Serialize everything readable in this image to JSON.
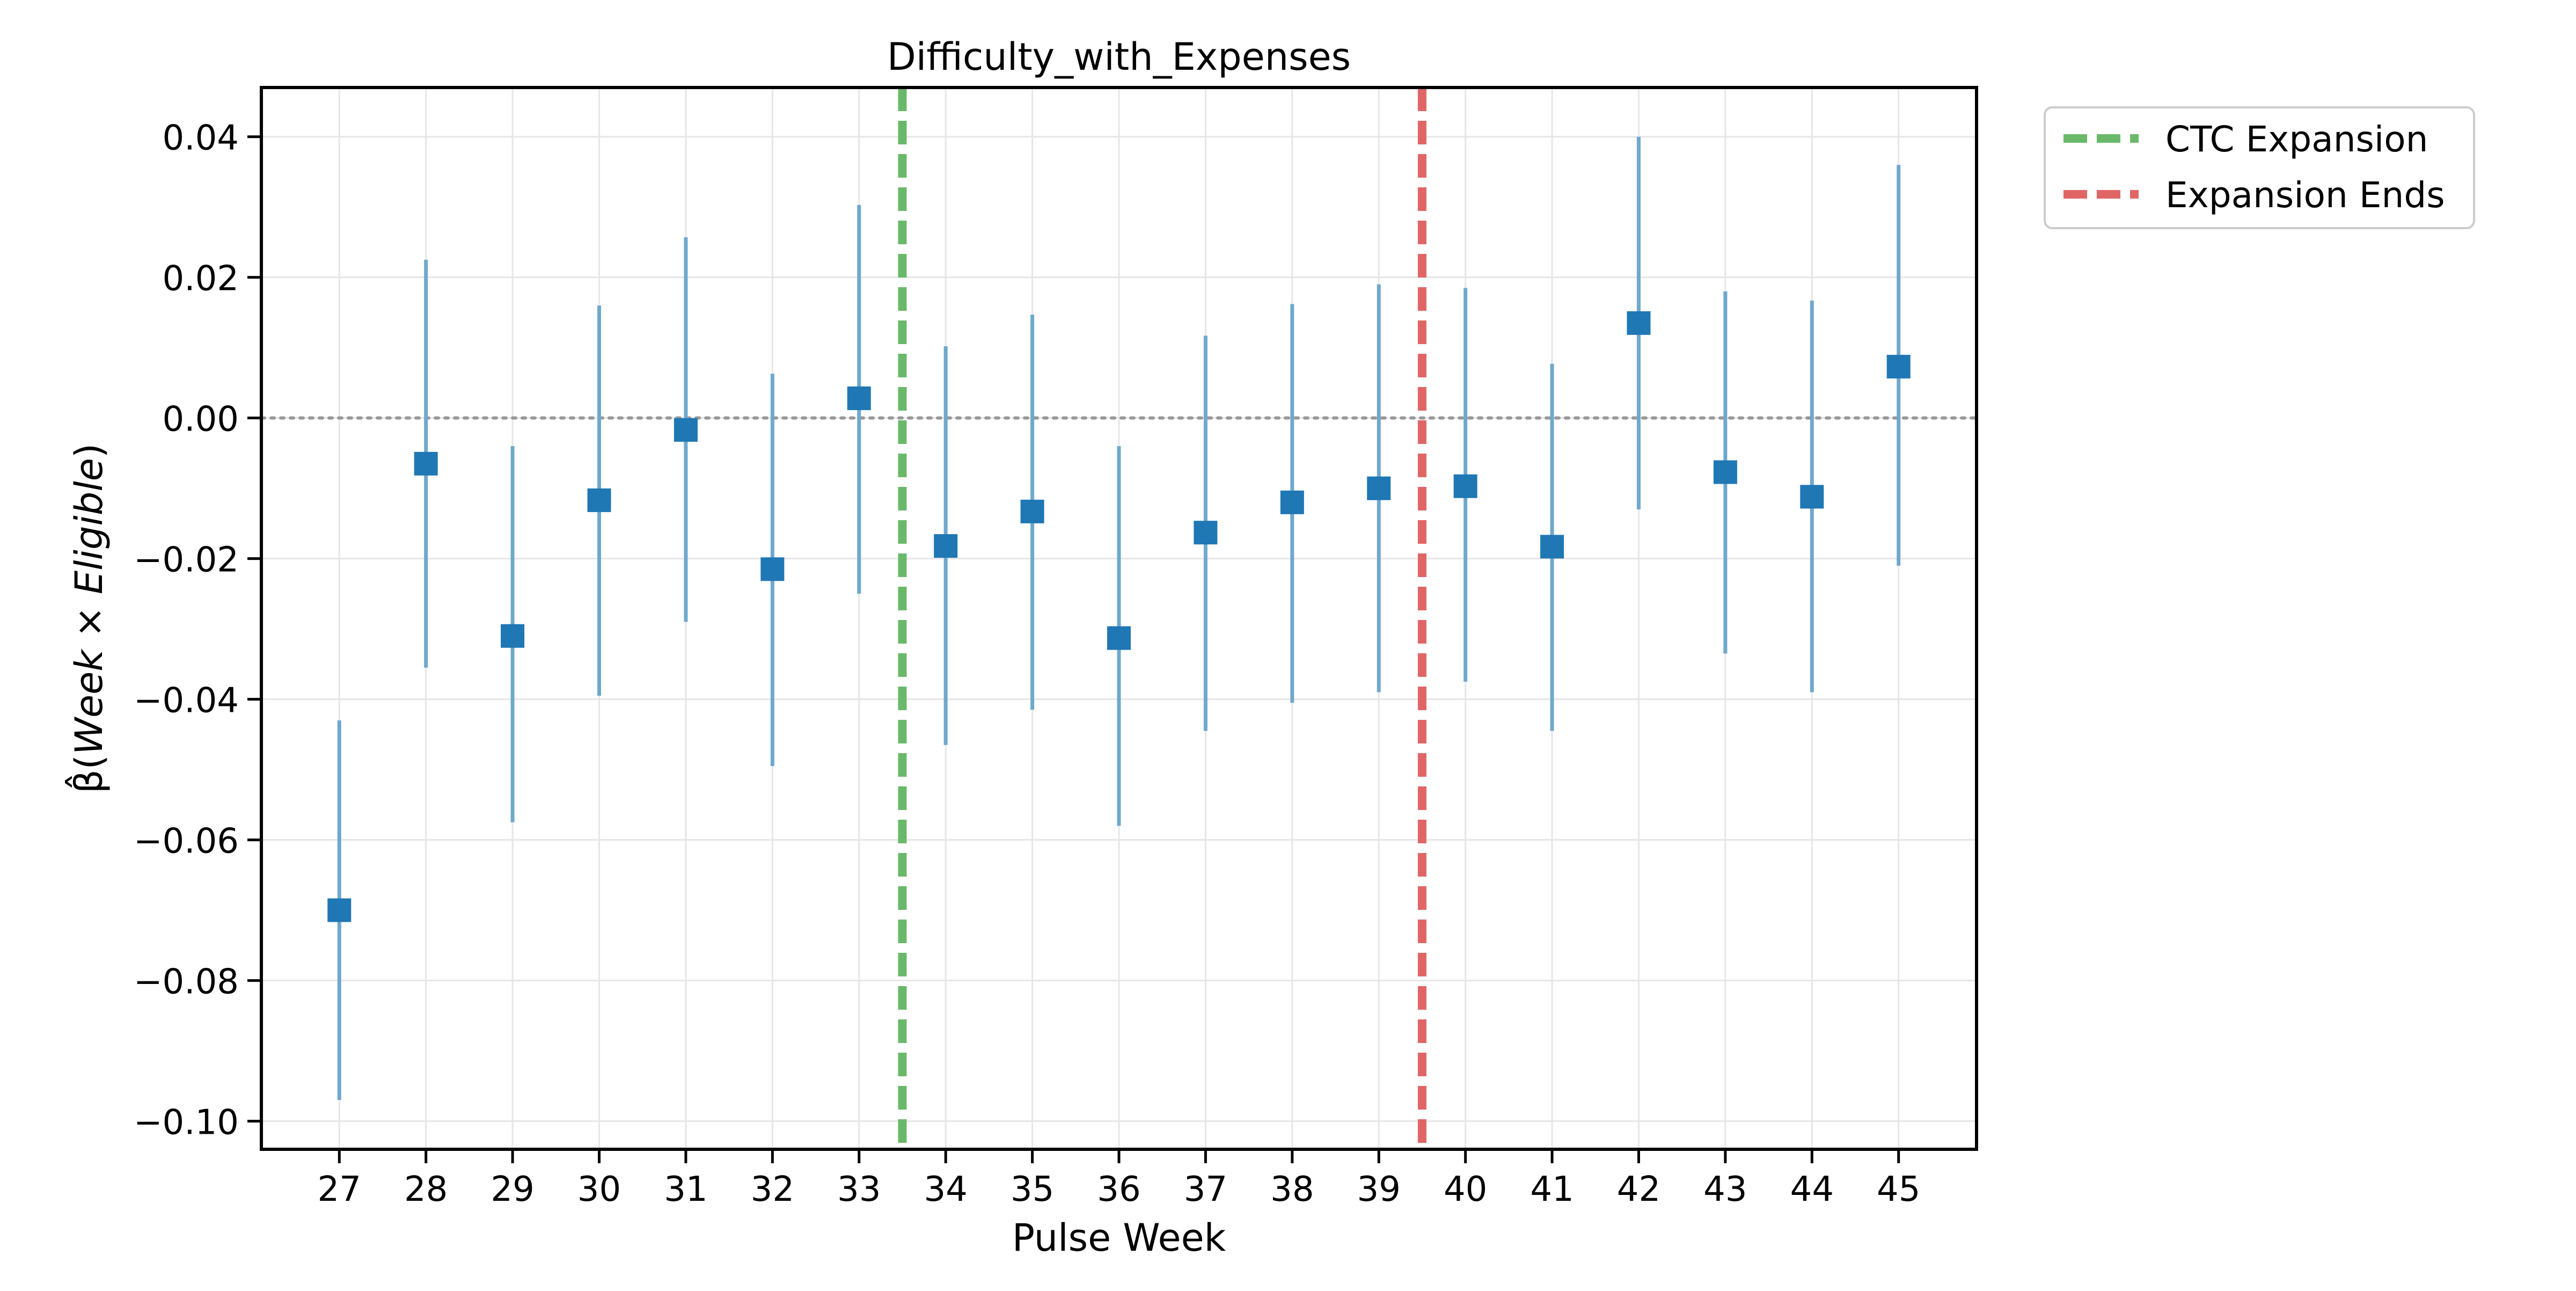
{
  "chart_data": {
    "type": "scatter",
    "title": "Difficulty_with_Expenses",
    "xlabel": "Pulse Week",
    "ylabel_parts": [
      "β̂(",
      "Week",
      " × ",
      "Eligible",
      ")"
    ],
    "ylim": [
      -0.104,
      0.047
    ],
    "xlim": [
      26.1,
      45.9
    ],
    "y_ticks": [
      0.04,
      0.02,
      0.0,
      -0.02,
      -0.04,
      -0.06,
      -0.08,
      -0.1
    ],
    "y_tick_labels": [
      "0.04",
      "0.02",
      "0.00",
      "−0.02",
      "−0.04",
      "−0.06",
      "−0.08",
      "−0.10"
    ],
    "x_ticks": [
      27,
      28,
      29,
      30,
      31,
      32,
      33,
      34,
      35,
      36,
      37,
      38,
      39,
      40,
      41,
      42,
      43,
      44,
      45
    ],
    "x_tick_labels": [
      "27",
      "28",
      "29",
      "30",
      "31",
      "32",
      "33",
      "34",
      "35",
      "36",
      "37",
      "38",
      "39",
      "40",
      "41",
      "42",
      "43",
      "44",
      "45"
    ],
    "grid": true,
    "zero_line": 0,
    "points": [
      {
        "x": 27,
        "y": -0.07,
        "lo": -0.097,
        "hi": -0.043
      },
      {
        "x": 28,
        "y": -0.0065,
        "lo": -0.0355,
        "hi": 0.0225
      },
      {
        "x": 29,
        "y": -0.031,
        "lo": -0.0575,
        "hi": -0.004
      },
      {
        "x": 30,
        "y": -0.0117,
        "lo": -0.0395,
        "hi": 0.016
      },
      {
        "x": 31,
        "y": -0.0017,
        "lo": -0.029,
        "hi": 0.0257
      },
      {
        "x": 32,
        "y": -0.0215,
        "lo": -0.0495,
        "hi": 0.0063
      },
      {
        "x": 33,
        "y": 0.0028,
        "lo": -0.025,
        "hi": 0.0303
      },
      {
        "x": 34,
        "y": -0.0182,
        "lo": -0.0465,
        "hi": 0.0102
      },
      {
        "x": 35,
        "y": -0.0133,
        "lo": -0.0415,
        "hi": 0.0147
      },
      {
        "x": 36,
        "y": -0.0313,
        "lo": -0.058,
        "hi": -0.004
      },
      {
        "x": 37,
        "y": -0.0163,
        "lo": -0.0445,
        "hi": 0.0117
      },
      {
        "x": 38,
        "y": -0.012,
        "lo": -0.0405,
        "hi": 0.0162
      },
      {
        "x": 39,
        "y": -0.01,
        "lo": -0.039,
        "hi": 0.019
      },
      {
        "x": 40,
        "y": -0.0097,
        "lo": -0.0375,
        "hi": 0.0185
      },
      {
        "x": 41,
        "y": -0.0183,
        "lo": -0.0445,
        "hi": 0.0077
      },
      {
        "x": 42,
        "y": 0.0135,
        "lo": -0.013,
        "hi": 0.04
      },
      {
        "x": 43,
        "y": -0.0077,
        "lo": -0.0335,
        "hi": 0.018
      },
      {
        "x": 44,
        "y": -0.0112,
        "lo": -0.039,
        "hi": 0.0167
      },
      {
        "x": 45,
        "y": 0.0073,
        "lo": -0.021,
        "hi": 0.036
      }
    ],
    "reference_lines": [
      {
        "name": "CTC Expansion",
        "x": 33.5,
        "color": "#6ab96a"
      },
      {
        "name": "Expansion Ends",
        "x": 39.5,
        "color": "#e06666"
      }
    ],
    "legend_position": "outside-top-right",
    "colors": {
      "marker": "#1f77b4",
      "errorbar": "#6fa8cc",
      "zero_line": "#999999",
      "grid": "#e6e6e6"
    }
  }
}
